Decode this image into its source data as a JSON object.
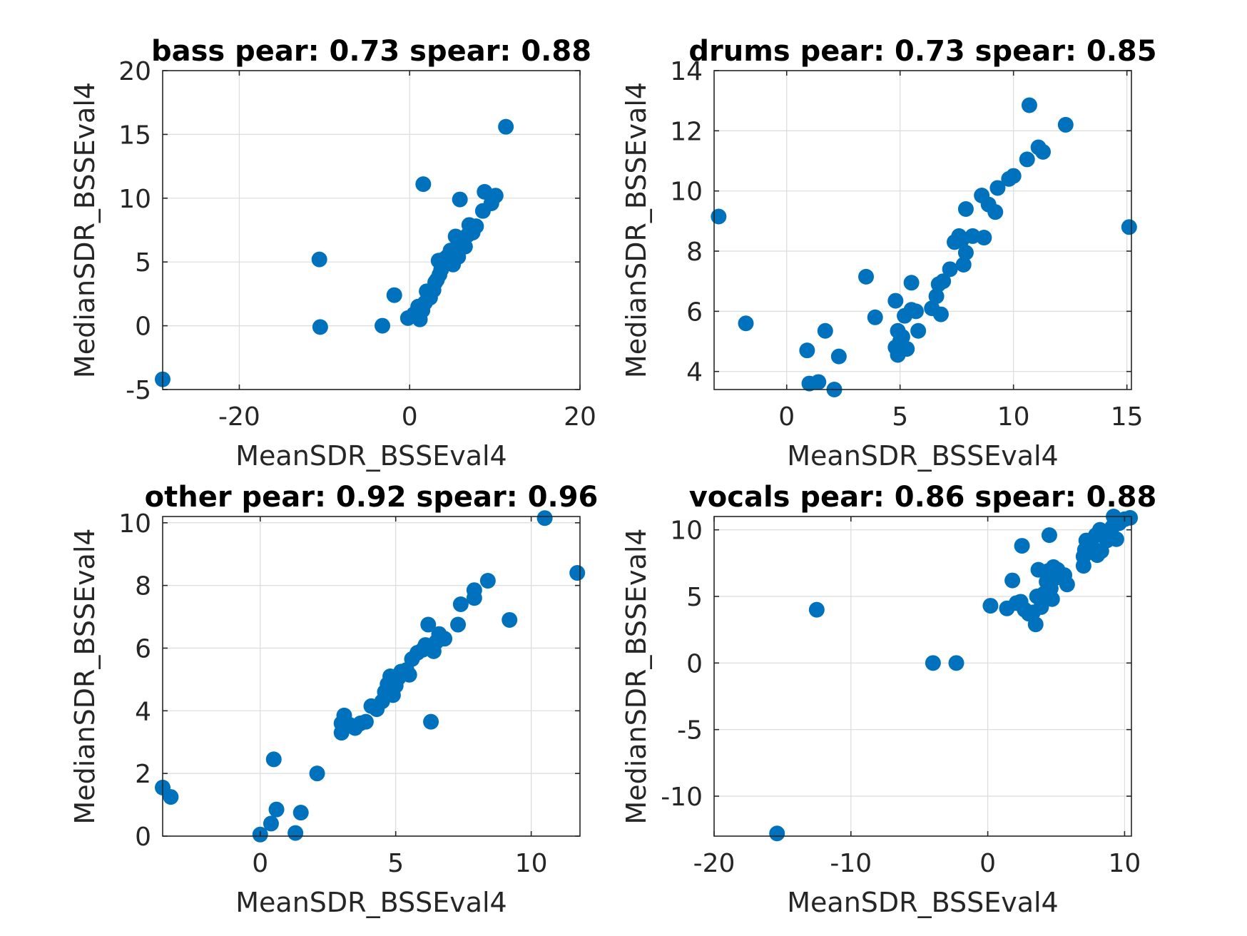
{
  "colors": {
    "marker": "#0072BD",
    "axes": "#262626",
    "grid": "#dcdcdc"
  },
  "chart_data": [
    {
      "type": "scatter",
      "title": "bass pear: 0.73 spear: 0.88",
      "xlabel": "MeanSDR_BSSEval4",
      "ylabel": "MedianSDR_BSSEval4",
      "xlim": [
        -29,
        20
      ],
      "ylim": [
        -5,
        20
      ],
      "xticks": [
        -20,
        0,
        20
      ],
      "xtick_labels": [
        "-20",
        "0",
        "20"
      ],
      "yticks": [
        -5,
        0,
        5,
        10,
        15,
        20
      ],
      "ytick_labels": [
        "-5",
        "0",
        "5",
        "10",
        "15",
        "20"
      ],
      "grid": true,
      "points": [
        [
          -29,
          -4.2
        ],
        [
          -10.6,
          5.2
        ],
        [
          -10.5,
          -0.1
        ],
        [
          -3.2,
          0
        ],
        [
          -1.8,
          2.4
        ],
        [
          -0.2,
          0.6
        ],
        [
          0.5,
          0.9
        ],
        [
          1.0,
          1.5
        ],
        [
          1.2,
          0.5
        ],
        [
          1.5,
          1.2
        ],
        [
          1.6,
          11.1
        ],
        [
          1.8,
          1.8
        ],
        [
          2.0,
          2.7
        ],
        [
          2.4,
          2.2
        ],
        [
          2.8,
          2.8
        ],
        [
          3.0,
          3.4
        ],
        [
          3.2,
          3.6
        ],
        [
          3.5,
          4.0
        ],
        [
          3.7,
          4.4
        ],
        [
          3.4,
          5.1
        ],
        [
          4.0,
          5.2
        ],
        [
          4.4,
          5.4
        ],
        [
          4.8,
          5.9
        ],
        [
          5.1,
          4.8
        ],
        [
          5.4,
          7.0
        ],
        [
          5.7,
          5.4
        ],
        [
          5.9,
          9.9
        ],
        [
          6.1,
          6.6
        ],
        [
          6.5,
          6.2
        ],
        [
          6.8,
          7.1
        ],
        [
          7.0,
          7.9
        ],
        [
          7.4,
          7.3
        ],
        [
          7.8,
          7.8
        ],
        [
          8.6,
          9.0
        ],
        [
          8.8,
          10.5
        ],
        [
          9.6,
          9.6
        ],
        [
          10.1,
          10.2
        ],
        [
          11.3,
          15.6
        ]
      ]
    },
    {
      "type": "scatter",
      "title": "drums pear: 0.73 spear: 0.85",
      "xlabel": "MeanSDR_BSSEval4",
      "ylabel": "MedianSDR_BSSEval4",
      "xlim": [
        -3.2,
        15.2
      ],
      "ylim": [
        3.4,
        14
      ],
      "xticks": [
        0,
        5,
        10,
        15
      ],
      "xtick_labels": [
        "0",
        "5",
        "10",
        "15"
      ],
      "yticks": [
        4,
        6,
        8,
        10,
        12,
        14
      ],
      "ytick_labels": [
        "4",
        "6",
        "8",
        "10",
        "12",
        "14"
      ],
      "grid": true,
      "points": [
        [
          -3.0,
          9.15
        ],
        [
          -1.8,
          5.6
        ],
        [
          0.9,
          4.7
        ],
        [
          1.0,
          3.6
        ],
        [
          1.4,
          3.65
        ],
        [
          1.7,
          5.35
        ],
        [
          2.1,
          3.4
        ],
        [
          2.3,
          4.5
        ],
        [
          3.5,
          7.15
        ],
        [
          3.9,
          5.8
        ],
        [
          4.8,
          4.8
        ],
        [
          4.8,
          6.35
        ],
        [
          4.9,
          4.55
        ],
        [
          4.9,
          5.35
        ],
        [
          5.0,
          5.0
        ],
        [
          5.1,
          5.15
        ],
        [
          5.2,
          5.85
        ],
        [
          5.3,
          4.75
        ],
        [
          5.5,
          6.95
        ],
        [
          5.5,
          6.05
        ],
        [
          5.7,
          6.0
        ],
        [
          5.8,
          5.35
        ],
        [
          6.4,
          6.1
        ],
        [
          6.6,
          6.5
        ],
        [
          6.7,
          6.9
        ],
        [
          6.8,
          5.9
        ],
        [
          6.9,
          7.0
        ],
        [
          7.2,
          7.4
        ],
        [
          7.4,
          8.3
        ],
        [
          7.6,
          8.5
        ],
        [
          7.7,
          8.35
        ],
        [
          7.8,
          7.55
        ],
        [
          7.9,
          7.95
        ],
        [
          7.9,
          9.4
        ],
        [
          8.2,
          8.5
        ],
        [
          8.6,
          9.85
        ],
        [
          8.7,
          8.45
        ],
        [
          8.9,
          9.55
        ],
        [
          9.2,
          9.3
        ],
        [
          9.3,
          10.1
        ],
        [
          9.8,
          10.4
        ],
        [
          10.0,
          10.5
        ],
        [
          10.6,
          11.05
        ],
        [
          10.7,
          12.85
        ],
        [
          11.1,
          11.45
        ],
        [
          11.3,
          11.3
        ],
        [
          12.3,
          12.2
        ],
        [
          15.1,
          8.8
        ]
      ]
    },
    {
      "type": "scatter",
      "title": "other pear: 0.92 spear: 0.96",
      "xlabel": "MeanSDR_BSSEval4",
      "ylabel": "MedianSDR_BSSEval4",
      "xlim": [
        -3.6,
        11.8
      ],
      "ylim": [
        0,
        10.2
      ],
      "xticks": [
        0,
        5,
        10
      ],
      "xtick_labels": [
        "0",
        "5",
        "10"
      ],
      "yticks": [
        0,
        2,
        4,
        6,
        8,
        10
      ],
      "ytick_labels": [
        "0",
        "2",
        "4",
        "6",
        "8",
        "10"
      ],
      "grid": true,
      "points": [
        [
          -3.6,
          1.55
        ],
        [
          -3.3,
          1.25
        ],
        [
          0,
          0.05
        ],
        [
          0.4,
          0.4
        ],
        [
          0.5,
          2.45
        ],
        [
          0.6,
          0.85
        ],
        [
          1.3,
          0.1
        ],
        [
          1.5,
          0.75
        ],
        [
          2.1,
          2.0
        ],
        [
          3.0,
          3.3
        ],
        [
          3.0,
          3.6
        ],
        [
          3.1,
          3.85
        ],
        [
          3.3,
          3.55
        ],
        [
          3.5,
          3.45
        ],
        [
          3.7,
          3.6
        ],
        [
          3.9,
          3.65
        ],
        [
          4.1,
          4.15
        ],
        [
          4.3,
          4.05
        ],
        [
          4.5,
          4.3
        ],
        [
          4.6,
          4.6
        ],
        [
          4.7,
          4.85
        ],
        [
          4.8,
          5.1
        ],
        [
          4.9,
          4.5
        ],
        [
          5.0,
          4.8
        ],
        [
          5.1,
          5.05
        ],
        [
          5.2,
          5.25
        ],
        [
          5.4,
          5.3
        ],
        [
          5.5,
          5.15
        ],
        [
          5.6,
          5.65
        ],
        [
          5.8,
          5.85
        ],
        [
          6.0,
          5.95
        ],
        [
          6.1,
          6.1
        ],
        [
          6.2,
          6.75
        ],
        [
          6.3,
          3.65
        ],
        [
          6.4,
          5.9
        ],
        [
          6.5,
          6.2
        ],
        [
          6.6,
          6.45
        ],
        [
          6.8,
          6.3
        ],
        [
          7.3,
          6.75
        ],
        [
          7.4,
          7.4
        ],
        [
          7.9,
          7.6
        ],
        [
          7.9,
          7.85
        ],
        [
          8.4,
          8.15
        ],
        [
          9.2,
          6.9
        ],
        [
          10.5,
          10.15
        ],
        [
          11.7,
          8.4
        ]
      ]
    },
    {
      "type": "scatter",
      "title": "vocals pear: 0.86 spear: 0.88",
      "xlabel": "MeanSDR_BSSEval4",
      "ylabel": "MedianSDR_BSSEval4",
      "xlim": [
        -20,
        10.5
      ],
      "ylim": [
        -13,
        11
      ],
      "xticks": [
        -20,
        -10,
        0,
        10
      ],
      "xtick_labels": [
        "-20",
        "-10",
        "0",
        "10"
      ],
      "yticks": [
        -10,
        -5,
        0,
        5,
        10
      ],
      "ytick_labels": [
        "-10",
        "-5",
        "0",
        "5",
        "10"
      ],
      "grid": true,
      "points": [
        [
          -15.4,
          -12.8
        ],
        [
          -12.5,
          4.0
        ],
        [
          -4,
          0
        ],
        [
          -2.3,
          0
        ],
        [
          0.2,
          4.3
        ],
        [
          1.4,
          4.1
        ],
        [
          1.8,
          6.2
        ],
        [
          2.1,
          4.5
        ],
        [
          2.4,
          4.6
        ],
        [
          2.5,
          8.8
        ],
        [
          2.7,
          4.0
        ],
        [
          3.0,
          3.7
        ],
        [
          3.3,
          3.8
        ],
        [
          3.5,
          2.9
        ],
        [
          3.6,
          5.0
        ],
        [
          3.7,
          7.0
        ],
        [
          3.9,
          4.2
        ],
        [
          4.1,
          5.2
        ],
        [
          4.3,
          6.1
        ],
        [
          4.4,
          6.9
        ],
        [
          4.5,
          9.6
        ],
        [
          4.6,
          5.6
        ],
        [
          4.7,
          4.8
        ],
        [
          4.8,
          7.2
        ],
        [
          5.0,
          6.4
        ],
        [
          5.1,
          7.0
        ],
        [
          5.3,
          6.6
        ],
        [
          5.6,
          6.6
        ],
        [
          5.8,
          5.9
        ],
        [
          7.0,
          7.3
        ],
        [
          7.0,
          8.0
        ],
        [
          7.1,
          8.5
        ],
        [
          7.2,
          9.2
        ],
        [
          7.6,
          8.8
        ],
        [
          7.9,
          9.6
        ],
        [
          8.0,
          8.1
        ],
        [
          8.2,
          10.0
        ],
        [
          8.3,
          8.4
        ],
        [
          8.7,
          9.2
        ],
        [
          9.1,
          10.2
        ],
        [
          9.2,
          11.0
        ],
        [
          9.4,
          9.3
        ],
        [
          9.6,
          10.5
        ],
        [
          10.0,
          10.8
        ],
        [
          10.4,
          10.9
        ]
      ]
    }
  ]
}
